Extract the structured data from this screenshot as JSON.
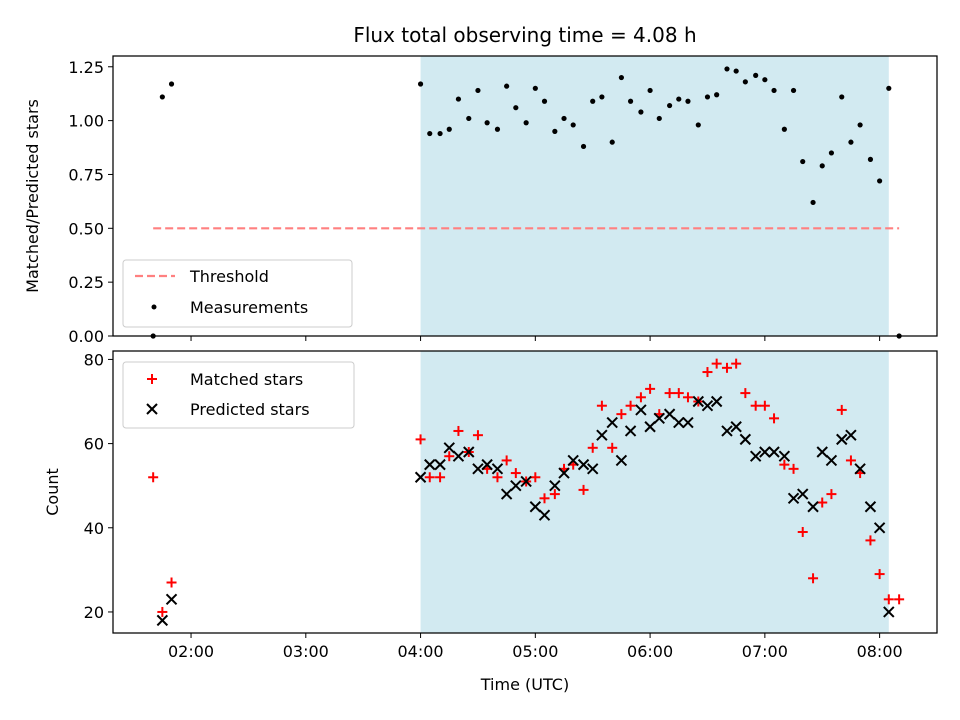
{
  "figure": {
    "title": "Flux total observing time = 4.08 h",
    "xlabel": "Time (UTC)",
    "top_ylabel": "Matched/Predicted stars",
    "bottom_ylabel": "Count",
    "x_tick_labels": [
      "02:00",
      "03:00",
      "04:00",
      "05:00",
      "06:00",
      "07:00",
      "08:00"
    ],
    "top_y_tick_labels": [
      "0.00",
      "0.25",
      "0.50",
      "0.75",
      "1.00",
      "1.25"
    ],
    "bottom_y_tick_labels": [
      "20",
      "40",
      "60",
      "80"
    ],
    "legend_top": {
      "threshold": "Threshold",
      "measurements": "Measurements"
    },
    "legend_bottom": {
      "matched": "Matched stars",
      "predicted": "Predicted stars"
    }
  },
  "colors": {
    "shade": "#add8e6",
    "threshold": "#ff8080",
    "measurements": "#000000",
    "matched": "#ff0000",
    "predicted": "#000000"
  },
  "chart_data": [
    {
      "type": "scatter",
      "title": "Flux total observing time = 4.08 h",
      "ylabel": "Matched/Predicted stars",
      "xlabel": "",
      "x_unit": "hours UTC",
      "xlim": [
        1.32,
        8.5
      ],
      "ylim": [
        0,
        1.3
      ],
      "grid": false,
      "legend_position": "lower-left",
      "shaded_region": [
        4.0,
        8.08
      ],
      "threshold": {
        "name": "Threshold",
        "value": 0.5,
        "x_range": [
          1.67,
          8.17
        ]
      },
      "series": [
        {
          "name": "Measurements",
          "x": [
            1.67,
            1.75,
            1.83,
            4.0,
            4.08,
            4.17,
            4.25,
            4.33,
            4.42,
            4.5,
            4.58,
            4.67,
            4.75,
            4.83,
            4.92,
            5.0,
            5.08,
            5.17,
            5.25,
            5.33,
            5.42,
            5.5,
            5.58,
            5.67,
            5.75,
            5.83,
            5.92,
            6.0,
            6.08,
            6.17,
            6.25,
            6.33,
            6.42,
            6.5,
            6.58,
            6.67,
            6.75,
            6.83,
            6.92,
            7.0,
            7.08,
            7.17,
            7.25,
            7.33,
            7.42,
            7.5,
            7.58,
            7.67,
            7.75,
            7.83,
            7.92,
            8.0,
            8.08,
            8.17
          ],
          "y": [
            0.0,
            1.11,
            1.17,
            1.17,
            0.94,
            0.94,
            0.96,
            1.1,
            1.01,
            1.14,
            0.99,
            0.96,
            1.16,
            1.06,
            0.99,
            1.15,
            1.09,
            0.95,
            1.01,
            0.98,
            0.88,
            1.09,
            1.11,
            0.9,
            1.2,
            1.09,
            1.04,
            1.14,
            1.01,
            1.07,
            1.1,
            1.09,
            0.98,
            1.11,
            1.12,
            1.24,
            1.23,
            1.18,
            1.21,
            1.19,
            1.14,
            0.96,
            1.14,
            0.81,
            0.62,
            0.79,
            0.85,
            1.11,
            0.9,
            0.98,
            0.82,
            0.72,
            1.15,
            0.0
          ]
        }
      ]
    },
    {
      "type": "scatter",
      "title": "",
      "xlabel": "Time (UTC)",
      "ylabel": "Count",
      "x_unit": "hours UTC",
      "xlim": [
        1.32,
        8.5
      ],
      "ylim": [
        15,
        82
      ],
      "grid": false,
      "legend_position": "top-left",
      "shaded_region": [
        4.0,
        8.08
      ],
      "series": [
        {
          "name": "Matched stars",
          "marker": "+",
          "x": [
            1.67,
            1.75,
            1.83,
            4.0,
            4.08,
            4.17,
            4.25,
            4.33,
            4.42,
            4.5,
            4.58,
            4.67,
            4.75,
            4.83,
            4.92,
            5.0,
            5.08,
            5.17,
            5.25,
            5.33,
            5.42,
            5.5,
            5.58,
            5.67,
            5.75,
            5.83,
            5.92,
            6.0,
            6.08,
            6.17,
            6.25,
            6.33,
            6.42,
            6.5,
            6.58,
            6.67,
            6.75,
            6.83,
            6.92,
            7.0,
            7.08,
            7.17,
            7.25,
            7.33,
            7.42,
            7.5,
            7.58,
            7.67,
            7.75,
            7.83,
            7.92,
            8.0,
            8.08,
            8.17
          ],
          "y": [
            52,
            20,
            27,
            61,
            52,
            52,
            57,
            63,
            58,
            62,
            54,
            52,
            56,
            53,
            51,
            52,
            47,
            48,
            54,
            55,
            49,
            59,
            69,
            59,
            67,
            69,
            71,
            73,
            67,
            72,
            72,
            71,
            70,
            77,
            79,
            78,
            79,
            72,
            69,
            69,
            66,
            55,
            54,
            39,
            28,
            46,
            48,
            68,
            56,
            53,
            37,
            29,
            23,
            23
          ]
        },
        {
          "name": "Predicted stars",
          "marker": "x",
          "x": [
            1.75,
            1.83,
            4.0,
            4.08,
            4.17,
            4.25,
            4.33,
            4.42,
            4.5,
            4.58,
            4.67,
            4.75,
            4.83,
            4.92,
            5.0,
            5.08,
            5.17,
            5.25,
            5.33,
            5.42,
            5.5,
            5.58,
            5.67,
            5.75,
            5.83,
            5.92,
            6.0,
            6.08,
            6.17,
            6.25,
            6.33,
            6.42,
            6.5,
            6.58,
            6.67,
            6.75,
            6.83,
            6.92,
            7.0,
            7.08,
            7.17,
            7.25,
            7.33,
            7.42,
            7.5,
            7.58,
            7.67,
            7.75,
            7.83,
            7.92,
            8.0,
            8.08
          ],
          "y": [
            18,
            23,
            52,
            55,
            55,
            59,
            57,
            58,
            54,
            55,
            54,
            48,
            50,
            51,
            45,
            43,
            50,
            53,
            56,
            55,
            54,
            62,
            65,
            56,
            63,
            68,
            64,
            66,
            67,
            65,
            65,
            70,
            69,
            70,
            63,
            64,
            61,
            57,
            58,
            58,
            57,
            47,
            48,
            45,
            58,
            56,
            61,
            62,
            54,
            45,
            40,
            20
          ]
        }
      ]
    }
  ]
}
